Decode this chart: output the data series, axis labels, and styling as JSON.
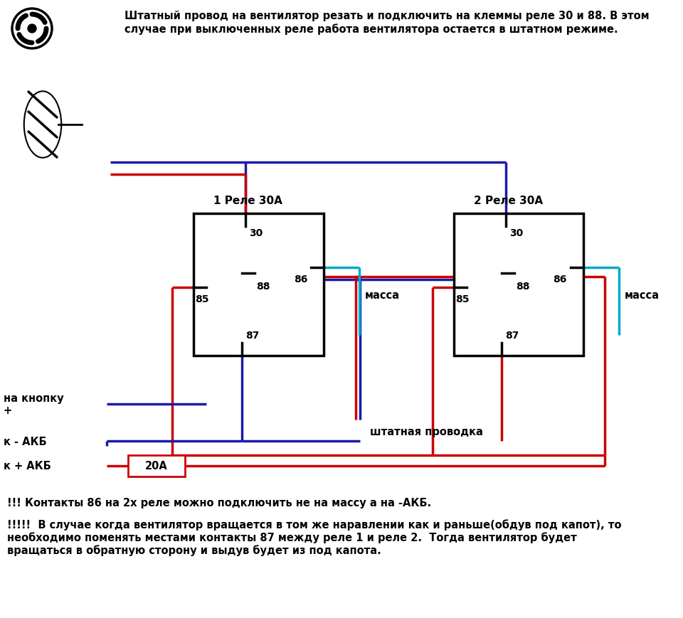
{
  "title_text": "Штатный провод на вентилятор резать и подключить на клеммы реле 30 и 88. В этом\nслучае при выключенных реле работа вентилятора остается в штатном режиме.",
  "relay1_label": "1 Реле 30А",
  "relay2_label": "2 Реле 30А",
  "bottom_text1": "!!! Контакты 86 на 2х реле можно подключить не на массу а на -АКБ.",
  "bottom_text2": "!!!!!  В случае когда вентилятор вращается в том же наравлении как и раньше(обдув под капот), то\nнеобходимо поменять местами контакты 87 между реле 1 и реле 2.  Тогда вентилятор будет\nвращаться в обратную сторону и выдув будет из под капота.",
  "label_massa": "масса",
  "label_shtatnaya": "штатная проводка",
  "label_knopka": "на кнопку\n+",
  "label_akb_minus": "к - АКБ",
  "label_akb_plus": "к + АКБ",
  "label_20a": "20А",
  "red": "#cc0000",
  "blue": "#1a1aaa",
  "cyan": "#00aacc",
  "black": "#000000",
  "bg": "#ffffff"
}
